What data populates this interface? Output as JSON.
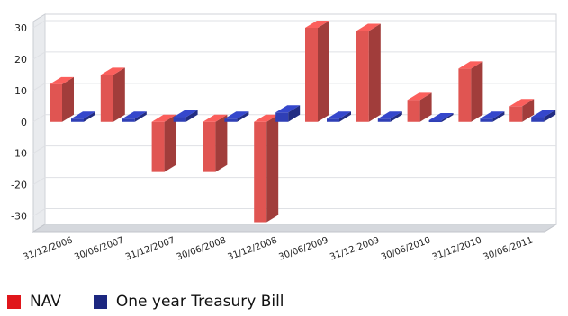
{
  "chart_data": {
    "type": "bar",
    "categories": [
      "31/12/2006",
      "30/06/2007",
      "31/12/2007",
      "30/06/2008",
      "31/12/2008",
      "30/06/2009",
      "31/12/2009",
      "30/06/2010",
      "31/12/2010",
      "30/06/2011"
    ],
    "series": [
      {
        "name": "NAV",
        "color": "#e05552",
        "values": [
          12,
          15,
          -16,
          -16,
          -32,
          30,
          29,
          7,
          17,
          5
        ]
      },
      {
        "name": "One year Treasury Bill",
        "color": "#2f3fb6",
        "values": [
          1,
          1,
          1.5,
          1,
          3,
          1,
          1,
          0.5,
          1,
          1.5
        ]
      }
    ],
    "ylim": [
      -35,
      32
    ],
    "yticks": [
      30,
      20,
      10,
      0,
      -10,
      -20,
      -30
    ],
    "grid": true,
    "legend_position": "bottom-left"
  },
  "legend": {
    "nav_label": "NAV",
    "tbill_label": "One year Treasury Bill"
  }
}
